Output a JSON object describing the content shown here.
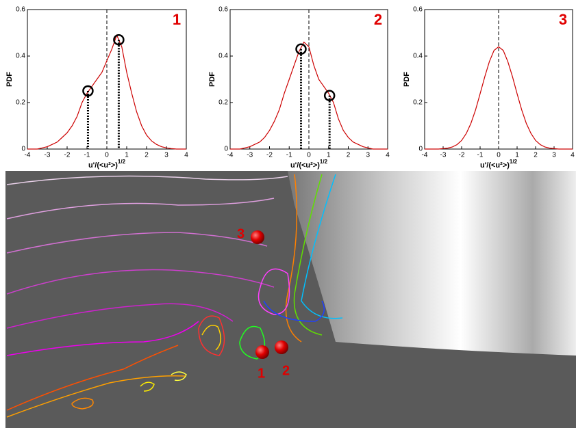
{
  "chart_data": [
    {
      "type": "line",
      "title": "1",
      "ylabel": "PDF",
      "xlabel": "u'/(<u²>)",
      "xlabel_exponent": "1/2",
      "color": "#cc0000",
      "x": [
        -4,
        -3.75,
        -3.5,
        -3.25,
        -3,
        -2.75,
        -2.5,
        -2.25,
        -2,
        -1.75,
        -1.5,
        -1.25,
        -1,
        -0.75,
        -0.5,
        -0.25,
        0,
        0.25,
        0.5,
        0.75,
        1,
        1.25,
        1.5,
        1.75,
        2,
        2.25,
        2.5,
        2.75,
        3,
        3.25,
        3.5,
        3.75,
        4
      ],
      "values": [
        0,
        0,
        0,
        0.005,
        0.01,
        0.02,
        0.03,
        0.05,
        0.07,
        0.1,
        0.14,
        0.2,
        0.24,
        0.27,
        0.3,
        0.33,
        0.38,
        0.43,
        0.49,
        0.44,
        0.33,
        0.24,
        0.16,
        0.1,
        0.06,
        0.035,
        0.02,
        0.01,
        0.005,
        0.002,
        0,
        0,
        0
      ],
      "markers": {
        "x": [
          -0.95,
          0.6
        ],
        "y": [
          0.25,
          0.47
        ]
      },
      "vline": 0,
      "xlim": [
        -4,
        4
      ],
      "ylim": [
        0,
        0.6
      ],
      "xticks": [
        -4,
        -3,
        -2,
        -1,
        0,
        1,
        2,
        3,
        4
      ],
      "yticks": [
        0,
        0.2,
        0.4,
        0.6
      ]
    },
    {
      "type": "line",
      "title": "2",
      "ylabel": "PDF",
      "xlabel": "u'/(<u²>)",
      "xlabel_exponent": "1/2",
      "color": "#cc0000",
      "x": [
        -4,
        -3.75,
        -3.5,
        -3.25,
        -3,
        -2.75,
        -2.5,
        -2.25,
        -2,
        -1.75,
        -1.5,
        -1.25,
        -1,
        -0.75,
        -0.5,
        -0.25,
        0,
        0.25,
        0.5,
        0.75,
        1,
        1.25,
        1.5,
        1.75,
        2,
        2.25,
        2.5,
        2.75,
        3,
        3.25,
        3.5,
        3.75,
        4
      ],
      "values": [
        0,
        0,
        0,
        0.005,
        0.01,
        0.02,
        0.03,
        0.05,
        0.08,
        0.12,
        0.17,
        0.24,
        0.3,
        0.36,
        0.42,
        0.46,
        0.44,
        0.36,
        0.3,
        0.27,
        0.24,
        0.2,
        0.13,
        0.08,
        0.05,
        0.03,
        0.02,
        0.01,
        0.005,
        0,
        0,
        0,
        0
      ],
      "markers": {
        "x": [
          -0.4,
          1.05
        ],
        "y": [
          0.43,
          0.23
        ]
      },
      "vline": 0,
      "xlim": [
        -4,
        4
      ],
      "ylim": [
        0,
        0.6
      ],
      "xticks": [
        -4,
        -3,
        -2,
        -1,
        0,
        1,
        2,
        3,
        4
      ],
      "yticks": [
        0,
        0.2,
        0.4,
        0.6
      ]
    },
    {
      "type": "line",
      "title": "3",
      "ylabel": "PDF",
      "xlabel": "u'/(<u²>)",
      "xlabel_exponent": "1/2",
      "color": "#cc0000",
      "x": [
        -4,
        -3.75,
        -3.5,
        -3.25,
        -3,
        -2.75,
        -2.5,
        -2.25,
        -2,
        -1.75,
        -1.5,
        -1.25,
        -1,
        -0.75,
        -0.5,
        -0.25,
        0,
        0.25,
        0.5,
        0.75,
        1,
        1.25,
        1.5,
        1.75,
        2,
        2.25,
        2.5,
        2.75,
        3,
        3.25,
        3.5,
        3.75,
        4
      ],
      "values": [
        0,
        0,
        0,
        0,
        0.002,
        0.004,
        0.009,
        0.019,
        0.037,
        0.067,
        0.11,
        0.168,
        0.238,
        0.311,
        0.376,
        0.424,
        0.44,
        0.424,
        0.376,
        0.311,
        0.238,
        0.168,
        0.11,
        0.067,
        0.037,
        0.019,
        0.009,
        0.004,
        0.002,
        0,
        0,
        0,
        0
      ],
      "vline": 0,
      "xlim": [
        -4,
        4
      ],
      "ylim": [
        0,
        0.6
      ],
      "xticks": [
        -4,
        -3,
        -2,
        -1,
        0,
        1,
        2,
        3,
        4
      ],
      "yticks": [
        0,
        0.2,
        0.4,
        0.6
      ]
    }
  ],
  "flow_labels": [
    "3",
    "1",
    "2"
  ]
}
